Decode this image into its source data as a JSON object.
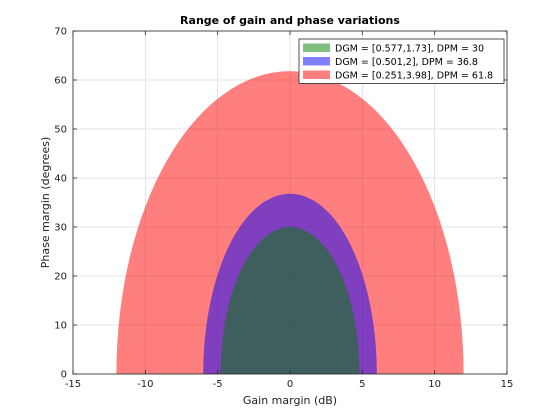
{
  "chart_data": {
    "type": "area",
    "title": "Range of gain and phase variations",
    "xlabel": "Gain margin (dB)",
    "ylabel": "Phase margin (degrees)",
    "xlim": [
      -15,
      15
    ],
    "ylim": [
      0,
      70
    ],
    "xticks": [
      -15,
      -10,
      -5,
      0,
      5,
      10,
      15
    ],
    "yticks": [
      0,
      10,
      20,
      30,
      40,
      50,
      60,
      70
    ],
    "grid": true,
    "legend_position": "top-right",
    "series": [
      {
        "name": "DGM = [0.251,3.98], DPM = 61.8",
        "color": "#ff0000",
        "opacity": 0.5,
        "gain_min_db": -12.0,
        "gain_max_db": 12.0,
        "phase_max_deg": 61.8
      },
      {
        "name": "DGM = [0.501,2], DPM = 36.8",
        "color": "#0000ff",
        "opacity": 0.5,
        "gain_min_db": -6.0,
        "gain_max_db": 6.0,
        "phase_max_deg": 36.8
      },
      {
        "name": "DGM = [0.577,1.73], DPM = 30",
        "color": "#008000",
        "opacity": 0.5,
        "gain_min_db": -4.8,
        "gain_max_db": 4.8,
        "phase_max_deg": 30.0
      }
    ],
    "legend_order": [
      2,
      1,
      0
    ]
  }
}
